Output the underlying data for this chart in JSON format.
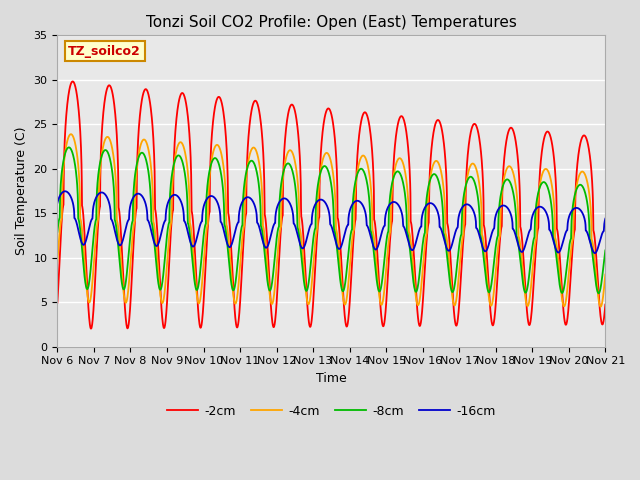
{
  "title": "Tonzi Soil CO2 Profile: Open (East) Temperatures",
  "xlabel": "Time",
  "ylabel": "Soil Temperature (C)",
  "ylim": [
    0,
    35
  ],
  "y_ticks": [
    0,
    5,
    10,
    15,
    20,
    25,
    30,
    35
  ],
  "x_tick_labels": [
    "Nov 6",
    "Nov 7",
    "Nov 8",
    "Nov 9",
    "Nov 10",
    "Nov 11",
    "Nov 12",
    "Nov 13",
    "Nov 14",
    "Nov 15",
    "Nov 16",
    "Nov 17",
    "Nov 18",
    "Nov 19",
    "Nov 20",
    "Nov 21"
  ],
  "legend_labels": [
    "-2cm",
    "-4cm",
    "-8cm",
    "-16cm"
  ],
  "line_colors": [
    "#ff0000",
    "#ffa500",
    "#00bb00",
    "#0000cc"
  ],
  "background_color": "#dcdcdc",
  "plot_bg_color": "#e8e8e8",
  "grid_color": "#ffffff",
  "title_fontsize": 11,
  "label_fontsize": 9,
  "tick_fontsize": 8,
  "legend_fontsize": 9,
  "annotation_text": "TZ_soilco2",
  "annotation_color": "#cc0000",
  "annotation_bg": "#ffffcc",
  "annotation_border": "#cc8800"
}
